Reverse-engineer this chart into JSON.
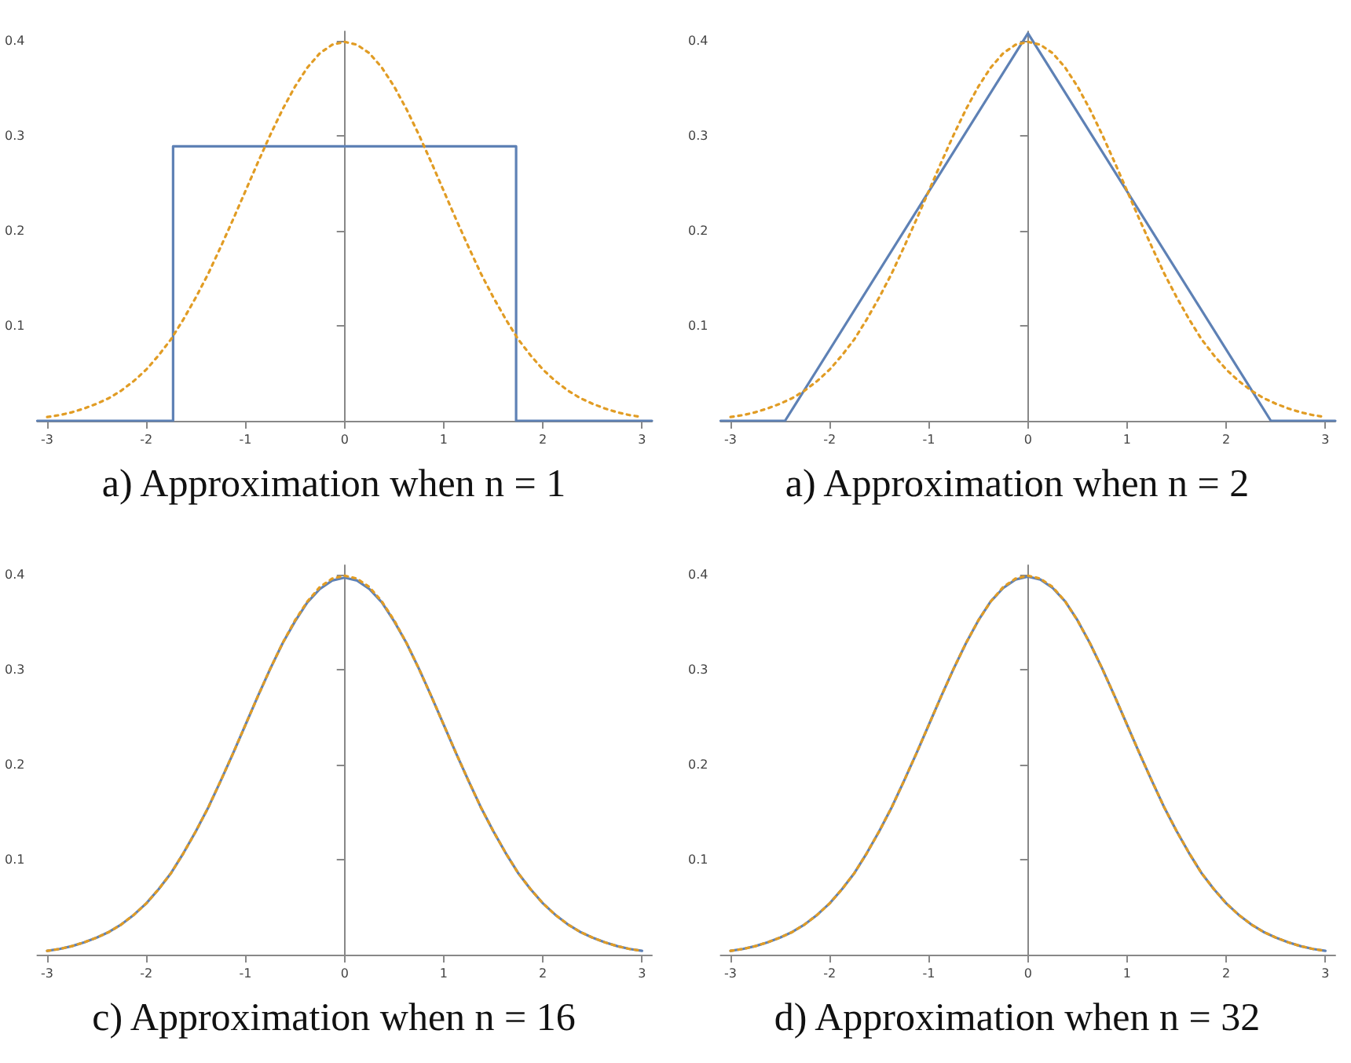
{
  "chart_data": [
    {
      "type": "line",
      "title": "a) Approximation when n = 1",
      "xlim": [
        -3.1,
        3.1
      ],
      "ylim": [
        0,
        0.41
      ],
      "xticks": [
        -3,
        -2,
        -1,
        0,
        1,
        2,
        3
      ],
      "yticks": [
        0.1,
        0.2,
        0.3,
        0.4
      ],
      "marker": "none",
      "x": [
        -3,
        -2.875,
        -2.75,
        -2.625,
        -2.5,
        -2.375,
        -2.25,
        -2.125,
        -2,
        -1.875,
        -1.75,
        -1.625,
        -1.5,
        -1.375,
        -1.25,
        -1.125,
        -1,
        -0.875,
        -0.75,
        -0.625,
        -0.5,
        -0.375,
        -0.25,
        -0.125,
        0,
        0.125,
        0.25,
        0.375,
        0.5,
        0.625,
        0.75,
        0.875,
        1,
        1.125,
        1.25,
        1.375,
        1.5,
        1.625,
        1.75,
        1.875,
        2,
        2.125,
        2.25,
        2.375,
        2.5,
        2.625,
        2.75,
        2.875,
        3
      ],
      "series": [
        {
          "color": "#5e81b5",
          "line_style": "solid",
          "x": [
            -3.1,
            -1.73,
            -1.73,
            1.73,
            1.73,
            3.1
          ],
          "values": [
            0,
            0,
            0.289,
            0.289,
            0,
            0
          ]
        },
        {
          "color": "#e19c24",
          "line_style": "dotted",
          "values": [
            0.004,
            0.006,
            0.009,
            0.013,
            0.018,
            0.024,
            0.032,
            0.042,
            0.054,
            0.069,
            0.086,
            0.107,
            0.13,
            0.155,
            0.183,
            0.212,
            0.242,
            0.272,
            0.301,
            0.328,
            0.352,
            0.372,
            0.387,
            0.396,
            0.399,
            0.396,
            0.387,
            0.372,
            0.352,
            0.328,
            0.301,
            0.272,
            0.242,
            0.212,
            0.183,
            0.155,
            0.13,
            0.107,
            0.086,
            0.069,
            0.054,
            0.042,
            0.032,
            0.024,
            0.018,
            0.013,
            0.009,
            0.006,
            0.004
          ]
        }
      ]
    },
    {
      "type": "line",
      "title": "a) Approximation when n = 2",
      "xlim": [
        -3.1,
        3.1
      ],
      "ylim": [
        0,
        0.41
      ],
      "xticks": [
        -3,
        -2,
        -1,
        0,
        1,
        2,
        3
      ],
      "yticks": [
        0.1,
        0.2,
        0.3,
        0.4
      ],
      "marker": "none",
      "x": [
        -3,
        -2.875,
        -2.75,
        -2.625,
        -2.5,
        -2.375,
        -2.25,
        -2.125,
        -2,
        -1.875,
        -1.75,
        -1.625,
        -1.5,
        -1.375,
        -1.25,
        -1.125,
        -1,
        -0.875,
        -0.75,
        -0.625,
        -0.5,
        -0.375,
        -0.25,
        -0.125,
        0,
        0.125,
        0.25,
        0.375,
        0.5,
        0.625,
        0.75,
        0.875,
        1,
        1.125,
        1.25,
        1.375,
        1.5,
        1.625,
        1.75,
        1.875,
        2,
        2.125,
        2.25,
        2.375,
        2.5,
        2.625,
        2.75,
        2.875,
        3
      ],
      "series": [
        {
          "color": "#5e81b5",
          "line_style": "solid",
          "x": [
            -3.1,
            -2.45,
            0,
            2.45,
            3.1
          ],
          "values": [
            0,
            0,
            0.408,
            0,
            0
          ]
        },
        {
          "color": "#e19c24",
          "line_style": "dotted",
          "values": [
            0.004,
            0.006,
            0.009,
            0.013,
            0.018,
            0.024,
            0.032,
            0.042,
            0.054,
            0.069,
            0.086,
            0.107,
            0.13,
            0.155,
            0.183,
            0.212,
            0.242,
            0.272,
            0.301,
            0.328,
            0.352,
            0.372,
            0.387,
            0.396,
            0.399,
            0.396,
            0.387,
            0.372,
            0.352,
            0.328,
            0.301,
            0.272,
            0.242,
            0.212,
            0.183,
            0.155,
            0.13,
            0.107,
            0.086,
            0.069,
            0.054,
            0.042,
            0.032,
            0.024,
            0.018,
            0.013,
            0.009,
            0.006,
            0.004
          ]
        }
      ]
    },
    {
      "type": "line",
      "title": "c) Approximation when n = 16",
      "xlim": [
        -3.1,
        3.1
      ],
      "ylim": [
        0,
        0.41
      ],
      "xticks": [
        -3,
        -2,
        -1,
        0,
        1,
        2,
        3
      ],
      "yticks": [
        0.1,
        0.2,
        0.3,
        0.4
      ],
      "marker": "none",
      "x": [
        -3,
        -2.875,
        -2.75,
        -2.625,
        -2.5,
        -2.375,
        -2.25,
        -2.125,
        -2,
        -1.875,
        -1.75,
        -1.625,
        -1.5,
        -1.375,
        -1.25,
        -1.125,
        -1,
        -0.875,
        -0.75,
        -0.625,
        -0.5,
        -0.375,
        -0.25,
        -0.125,
        0,
        0.125,
        0.25,
        0.375,
        0.5,
        0.625,
        0.75,
        0.875,
        1,
        1.125,
        1.25,
        1.375,
        1.5,
        1.625,
        1.75,
        1.875,
        2,
        2.125,
        2.25,
        2.375,
        2.5,
        2.625,
        2.75,
        2.875,
        3
      ],
      "series": [
        {
          "color": "#e19c24",
          "line_style": "dotted",
          "values": [
            0.004,
            0.006,
            0.009,
            0.013,
            0.018,
            0.024,
            0.032,
            0.042,
            0.054,
            0.069,
            0.086,
            0.107,
            0.13,
            0.155,
            0.183,
            0.212,
            0.242,
            0.272,
            0.301,
            0.328,
            0.352,
            0.372,
            0.387,
            0.396,
            0.399,
            0.396,
            0.387,
            0.372,
            0.352,
            0.328,
            0.301,
            0.272,
            0.242,
            0.212,
            0.183,
            0.155,
            0.13,
            0.107,
            0.086,
            0.069,
            0.054,
            0.042,
            0.032,
            0.024,
            0.018,
            0.013,
            0.009,
            0.006,
            0.004
          ]
        },
        {
          "color": "#5e81b5",
          "line_style": "solid",
          "values": [
            0.004,
            0.006,
            0.009,
            0.013,
            0.018,
            0.024,
            0.032,
            0.042,
            0.054,
            0.069,
            0.086,
            0.107,
            0.13,
            0.155,
            0.183,
            0.212,
            0.242,
            0.272,
            0.301,
            0.328,
            0.351,
            0.371,
            0.385,
            0.394,
            0.397,
            0.394,
            0.385,
            0.371,
            0.351,
            0.328,
            0.301,
            0.272,
            0.242,
            0.212,
            0.183,
            0.155,
            0.13,
            0.107,
            0.086,
            0.069,
            0.054,
            0.042,
            0.032,
            0.024,
            0.018,
            0.013,
            0.009,
            0.006,
            0.004
          ]
        }
      ]
    },
    {
      "type": "line",
      "title": "d) Approximation when n = 32",
      "xlim": [
        -3.1,
        3.1
      ],
      "ylim": [
        0,
        0.41
      ],
      "xticks": [
        -3,
        -2,
        -1,
        0,
        1,
        2,
        3
      ],
      "yticks": [
        0.1,
        0.2,
        0.3,
        0.4
      ],
      "marker": "none",
      "x": [
        -3,
        -2.875,
        -2.75,
        -2.625,
        -2.5,
        -2.375,
        -2.25,
        -2.125,
        -2,
        -1.875,
        -1.75,
        -1.625,
        -1.5,
        -1.375,
        -1.25,
        -1.125,
        -1,
        -0.875,
        -0.75,
        -0.625,
        -0.5,
        -0.375,
        -0.25,
        -0.125,
        0,
        0.125,
        0.25,
        0.375,
        0.5,
        0.625,
        0.75,
        0.875,
        1,
        1.125,
        1.25,
        1.375,
        1.5,
        1.625,
        1.75,
        1.875,
        2,
        2.125,
        2.25,
        2.375,
        2.5,
        2.625,
        2.75,
        2.875,
        3
      ],
      "series": [
        {
          "color": "#e19c24",
          "line_style": "dotted",
          "values": [
            0.004,
            0.006,
            0.009,
            0.013,
            0.018,
            0.024,
            0.032,
            0.042,
            0.054,
            0.069,
            0.086,
            0.107,
            0.13,
            0.155,
            0.183,
            0.212,
            0.242,
            0.272,
            0.301,
            0.328,
            0.352,
            0.372,
            0.387,
            0.396,
            0.399,
            0.396,
            0.387,
            0.372,
            0.352,
            0.328,
            0.301,
            0.272,
            0.242,
            0.212,
            0.183,
            0.155,
            0.13,
            0.107,
            0.086,
            0.069,
            0.054,
            0.042,
            0.032,
            0.024,
            0.018,
            0.013,
            0.009,
            0.006,
            0.004
          ]
        },
        {
          "color": "#5e81b5",
          "line_style": "solid",
          "values": [
            0.004,
            0.006,
            0.009,
            0.013,
            0.018,
            0.024,
            0.032,
            0.042,
            0.054,
            0.069,
            0.086,
            0.107,
            0.13,
            0.155,
            0.183,
            0.212,
            0.242,
            0.272,
            0.301,
            0.328,
            0.352,
            0.372,
            0.386,
            0.395,
            0.398,
            0.395,
            0.386,
            0.372,
            0.352,
            0.328,
            0.301,
            0.272,
            0.242,
            0.212,
            0.183,
            0.155,
            0.13,
            0.107,
            0.086,
            0.069,
            0.054,
            0.042,
            0.032,
            0.024,
            0.018,
            0.013,
            0.009,
            0.006,
            0.004
          ]
        }
      ]
    }
  ]
}
